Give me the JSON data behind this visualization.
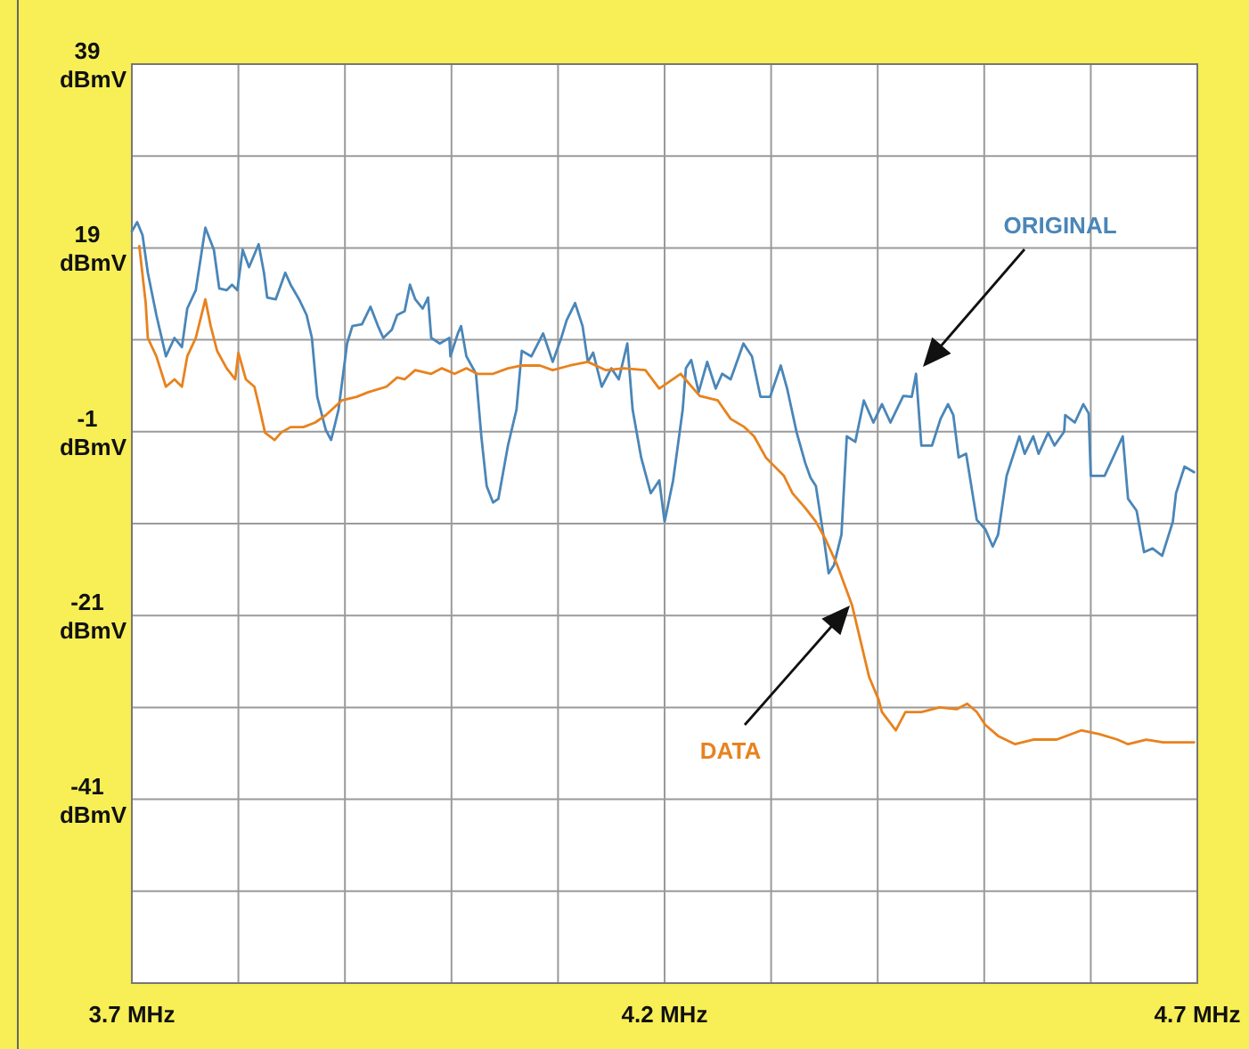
{
  "chart_data": {
    "type": "line",
    "xlim": [
      3.7,
      4.7
    ],
    "ylim": [
      -61,
      39
    ],
    "xticks": [
      {
        "value": 3.7,
        "label": "3.7 MHz"
      },
      {
        "value": 3.8,
        "label": null
      },
      {
        "value": 3.9,
        "label": null
      },
      {
        "value": 4.0,
        "label": null
      },
      {
        "value": 4.1,
        "label": null
      },
      {
        "value": 4.2,
        "label": "4.2 MHz"
      },
      {
        "value": 4.3,
        "label": null
      },
      {
        "value": 4.4,
        "label": null
      },
      {
        "value": 4.5,
        "label": null
      },
      {
        "value": 4.6,
        "label": null
      },
      {
        "value": 4.7,
        "label": "4.7 MHz"
      }
    ],
    "yticks": [
      {
        "value": 39,
        "label": "39 dBmV"
      },
      {
        "value": 29,
        "label": null
      },
      {
        "value": 19,
        "label": "19 dBmV"
      },
      {
        "value": 9,
        "label": null
      },
      {
        "value": -1,
        "label": "-1 dBmV"
      },
      {
        "value": -11,
        "label": null
      },
      {
        "value": -21,
        "label": "-21 dBmV"
      },
      {
        "value": -31,
        "label": null
      },
      {
        "value": -41,
        "label": "-41 dBmV"
      },
      {
        "value": -51,
        "label": null
      }
    ],
    "grid": true,
    "legend": false,
    "series": [
      {
        "name": "ORIGINAL",
        "color": "#4a86b8",
        "x": [
          3.7,
          3.705,
          3.71,
          3.715,
          3.723,
          3.732,
          3.74,
          3.747,
          3.752,
          3.76,
          3.769,
          3.777,
          3.782,
          3.789,
          3.794,
          3.799,
          3.804,
          3.81,
          3.819,
          3.824,
          3.827,
          3.835,
          3.844,
          3.849,
          3.857,
          3.864,
          3.869,
          3.874,
          3.882,
          3.887,
          3.894,
          3.902,
          3.907,
          3.916,
          3.924,
          3.931,
          3.936,
          3.944,
          3.949,
          3.956,
          3.961,
          3.966,
          3.973,
          3.978,
          3.981,
          3.989,
          3.998,
          3.999,
          4.006,
          4.009,
          4.014,
          4.023,
          4.028,
          4.033,
          4.039,
          4.044,
          4.053,
          4.061,
          4.066,
          4.075,
          4.086,
          4.095,
          4.103,
          4.108,
          4.116,
          4.123,
          4.128,
          4.133,
          4.141,
          4.15,
          4.157,
          4.165,
          4.17,
          4.178,
          4.187,
          4.195,
          4.2,
          4.208,
          4.217,
          4.22,
          4.225,
          4.232,
          4.24,
          4.248,
          4.254,
          4.262,
          4.274,
          4.282,
          4.29,
          4.299,
          4.309,
          4.315,
          4.324,
          4.332,
          4.337,
          4.342,
          4.349,
          4.354,
          4.359,
          4.366,
          4.371,
          4.379,
          4.387,
          4.396,
          4.404,
          4.412,
          4.424,
          4.432,
          4.436,
          4.441,
          4.451,
          4.459,
          4.466,
          4.471,
          4.476,
          4.483,
          4.493,
          4.501,
          4.508,
          4.513,
          4.521,
          4.533,
          4.538,
          4.546,
          4.551,
          4.56,
          4.566,
          4.575,
          4.576,
          4.585,
          4.593,
          4.598,
          4.6,
          4.613,
          4.621,
          4.63,
          4.635,
          4.643,
          4.65,
          4.658,
          4.667,
          4.677,
          4.68,
          4.688,
          4.697
        ],
        "values": [
          20.8,
          21.8,
          20.4,
          16.3,
          11.7,
          7.2,
          9.2,
          8.2,
          12.4,
          14.4,
          21.2,
          18.8,
          14.6,
          14.4,
          15.0,
          14.4,
          18.8,
          16.9,
          19.4,
          16.3,
          13.6,
          13.4,
          16.3,
          15.0,
          13.4,
          11.7,
          9.2,
          2.8,
          -0.8,
          -1.9,
          1.4,
          8.6,
          10.5,
          10.7,
          12.6,
          10.5,
          9.2,
          10.1,
          11.7,
          12.1,
          15.0,
          13.4,
          12.4,
          13.6,
          9.2,
          8.6,
          9.2,
          7.2,
          9.7,
          10.5,
          7.2,
          5.3,
          -1.5,
          -6.9,
          -8.7,
          -8.3,
          -2.5,
          1.4,
          7.8,
          7.2,
          9.7,
          6.6,
          9.2,
          11.1,
          13.0,
          10.5,
          6.6,
          7.6,
          3.9,
          5.9,
          4.7,
          8.6,
          1.4,
          -3.8,
          -7.7,
          -6.3,
          -10.8,
          -6.3,
          1.4,
          5.9,
          6.8,
          3.3,
          6.6,
          3.7,
          5.3,
          4.7,
          8.6,
          7.2,
          2.8,
          2.8,
          6.2,
          3.7,
          -1.1,
          -4.4,
          -6.0,
          -6.9,
          -12.2,
          -16.4,
          -15.5,
          -12.2,
          -1.5,
          -2.1,
          2.4,
          0.0,
          2.0,
          0.0,
          2.9,
          2.8,
          5.3,
          -2.5,
          -2.5,
          0.4,
          2.0,
          0.8,
          -3.8,
          -3.4,
          -10.6,
          -11.6,
          -13.5,
          -12.2,
          -5.8,
          -1.5,
          -3.4,
          -1.5,
          -3.4,
          -1.1,
          -2.5,
          -1.0,
          0.8,
          0.0,
          2.0,
          1.0,
          -5.8,
          -5.8,
          -3.8,
          -1.5,
          -8.3,
          -9.6,
          -14.1,
          -13.7,
          -14.5,
          -10.8,
          -7.7,
          -4.8,
          -5.4
        ]
      },
      {
        "name": "DATA",
        "color": "#e8821e",
        "x": [
          3.707,
          3.713,
          3.715,
          3.723,
          3.732,
          3.74,
          3.747,
          3.752,
          3.76,
          3.769,
          3.774,
          3.78,
          3.789,
          3.797,
          3.8,
          3.807,
          3.815,
          3.819,
          3.825,
          3.834,
          3.84,
          3.849,
          3.861,
          3.872,
          3.882,
          3.897,
          3.911,
          3.922,
          3.939,
          3.949,
          3.956,
          3.966,
          3.981,
          3.991,
          4.003,
          4.014,
          4.024,
          4.039,
          4.053,
          4.066,
          4.083,
          4.095,
          4.111,
          4.128,
          4.145,
          4.162,
          4.182,
          4.195,
          4.215,
          4.233,
          4.25,
          4.262,
          4.275,
          4.284,
          4.295,
          4.3,
          4.312,
          4.32,
          4.332,
          4.342,
          4.351,
          4.362,
          4.376,
          4.384,
          4.392,
          4.401,
          4.404,
          4.417,
          4.426,
          4.441,
          4.458,
          4.474,
          4.484,
          4.493,
          4.501,
          4.513,
          4.529,
          4.546,
          4.568,
          4.591,
          4.608,
          4.625,
          4.635,
          4.652,
          4.668,
          4.697
        ],
        "values": [
          19.2,
          13.0,
          9.2,
          7.2,
          3.9,
          4.7,
          3.9,
          7.2,
          9.2,
          13.4,
          10.5,
          7.8,
          5.9,
          4.7,
          7.6,
          4.7,
          3.9,
          2.0,
          -1.1,
          -1.9,
          -1.1,
          -0.5,
          -0.5,
          0.0,
          0.8,
          2.4,
          2.8,
          3.3,
          3.9,
          4.9,
          4.7,
          5.7,
          5.3,
          5.9,
          5.3,
          5.9,
          5.3,
          5.3,
          5.9,
          6.2,
          6.2,
          5.7,
          6.2,
          6.6,
          5.7,
          5.9,
          5.7,
          3.7,
          5.3,
          2.9,
          2.4,
          0.4,
          -0.5,
          -1.5,
          -3.8,
          -4.4,
          -5.8,
          -7.7,
          -9.3,
          -10.8,
          -12.7,
          -15.5,
          -19.9,
          -23.8,
          -27.7,
          -30.2,
          -31.5,
          -33.5,
          -31.5,
          -31.5,
          -31.0,
          -31.2,
          -30.6,
          -31.5,
          -32.9,
          -34.1,
          -35.0,
          -34.5,
          -34.5,
          -33.5,
          -33.9,
          -34.5,
          -35.0,
          -34.5,
          -34.8,
          -34.8
        ]
      }
    ]
  }
}
